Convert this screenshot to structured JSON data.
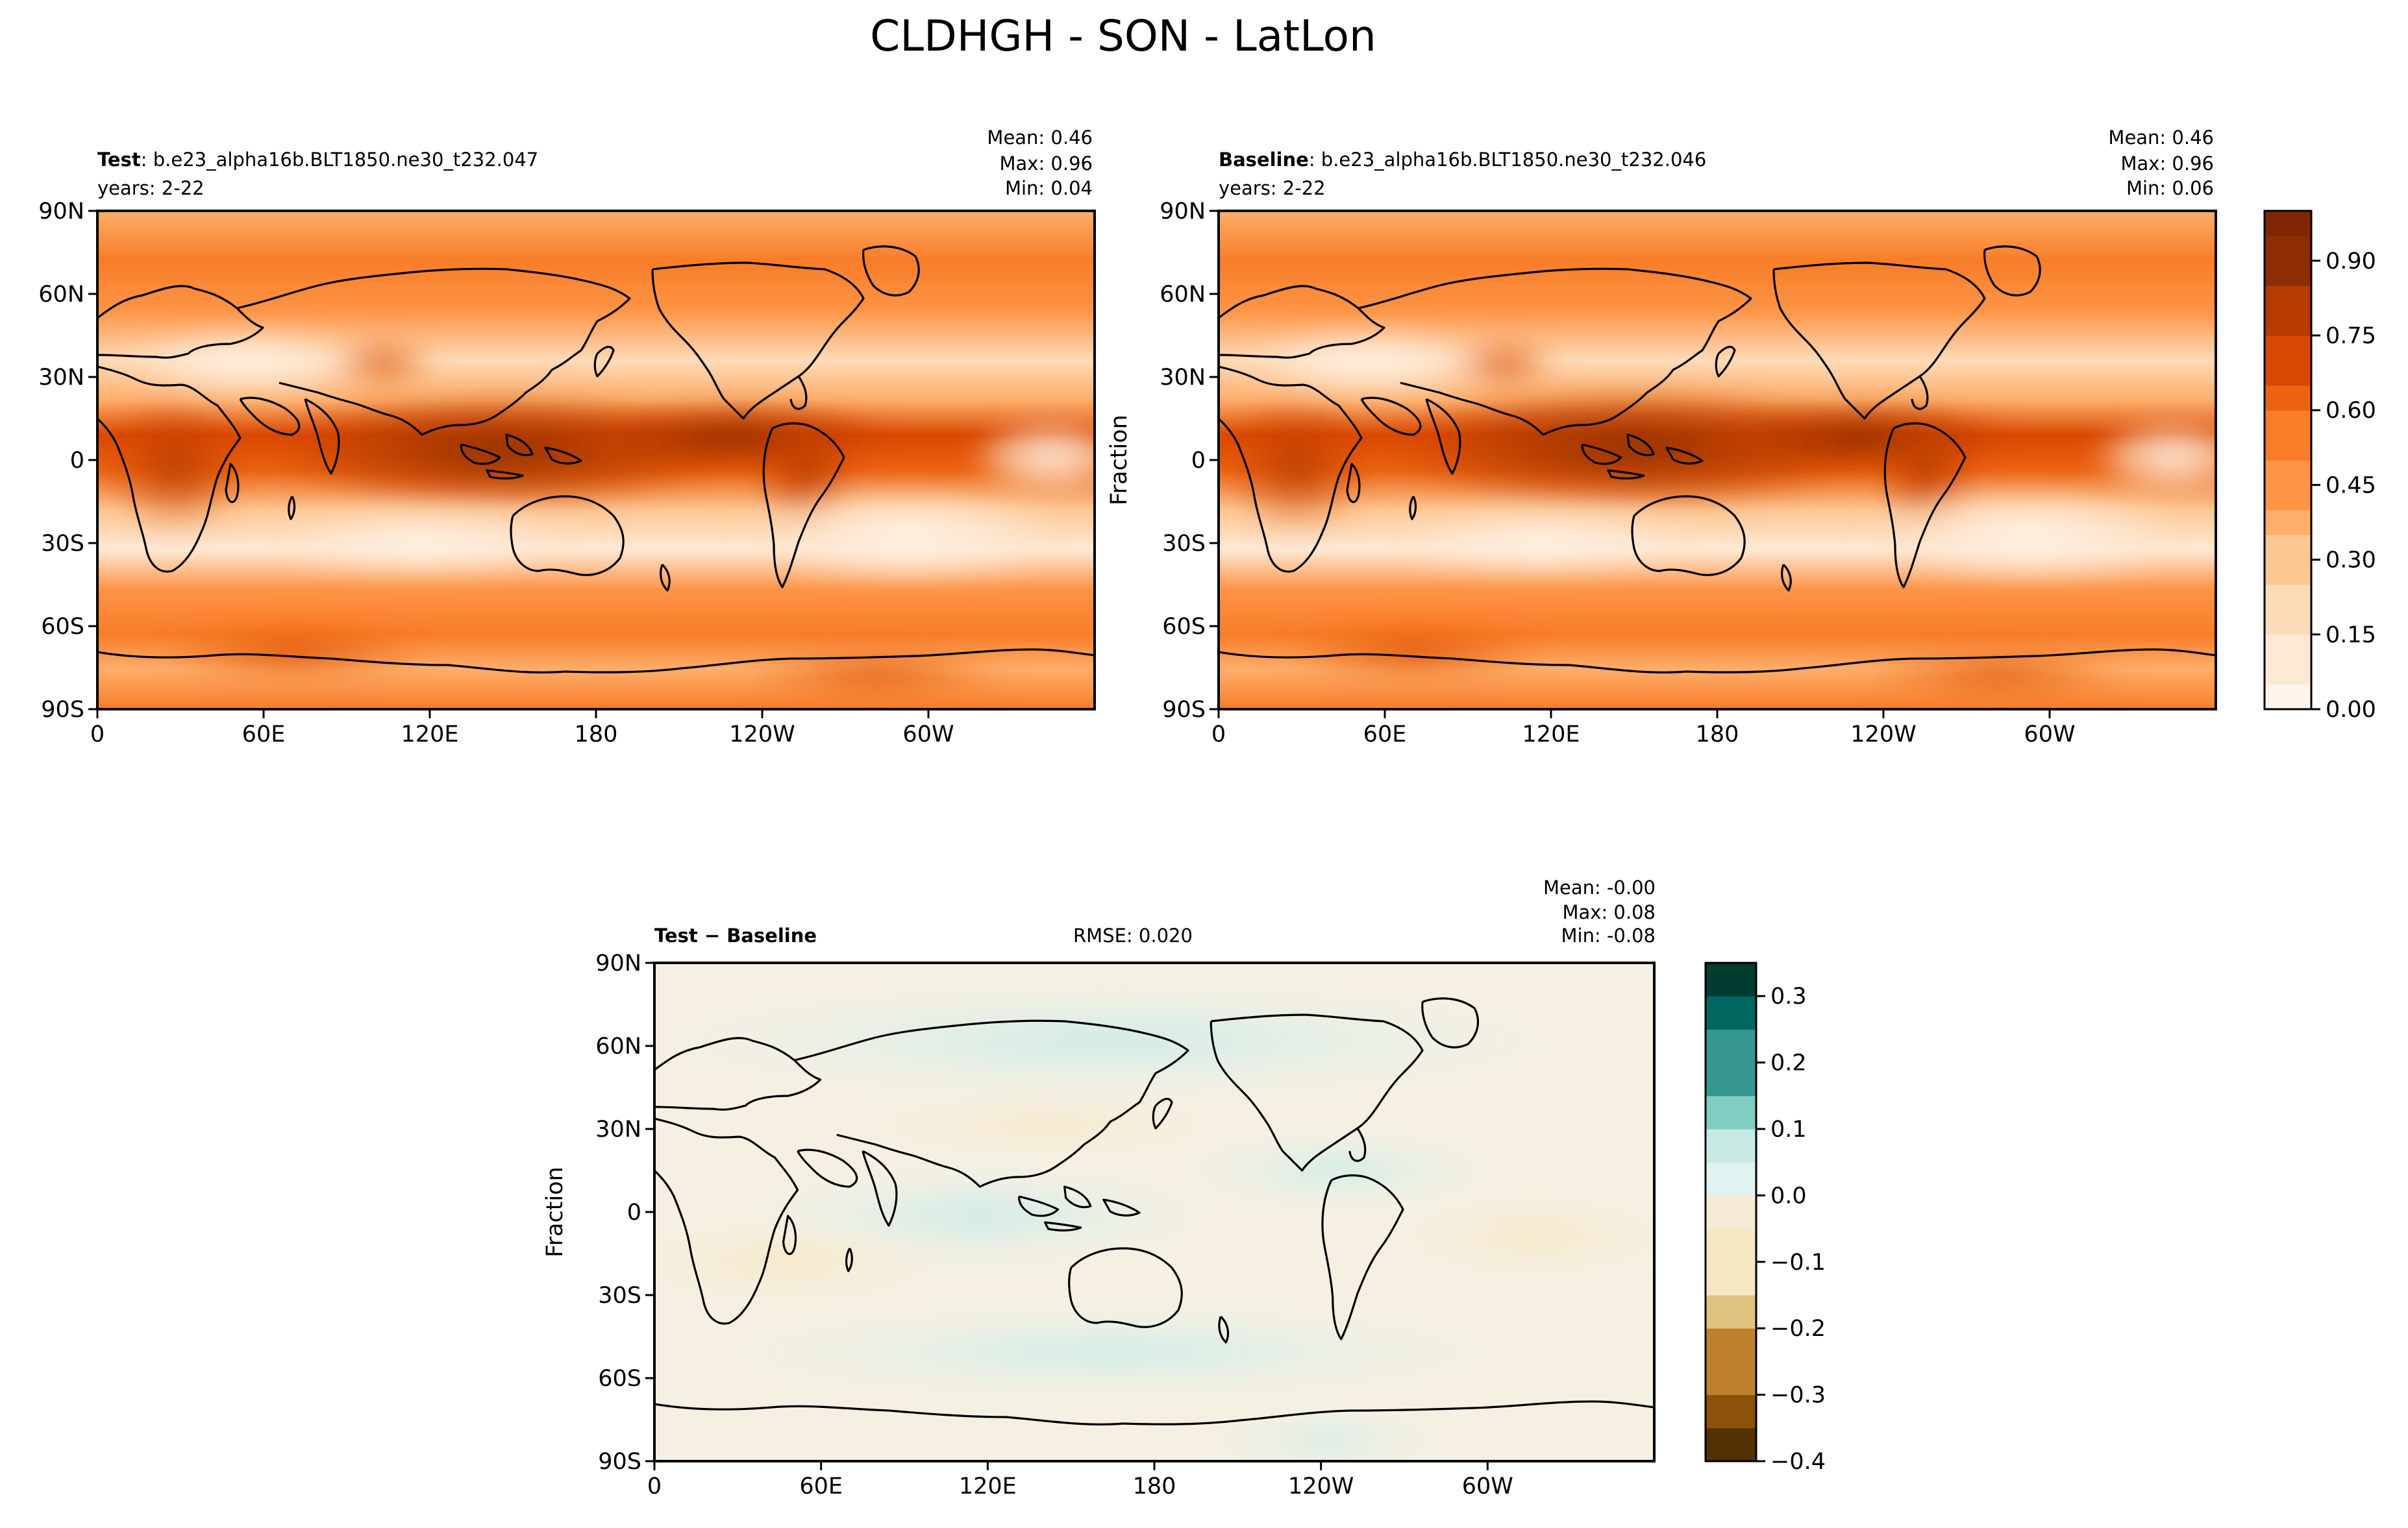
{
  "figure": {
    "title": "CLDHGH - SON - LatLon"
  },
  "colors": {
    "orange_scale": [
      "#fff5eb",
      "#fee9d5",
      "#fddbb8",
      "#fdc793",
      "#fdae6b",
      "#fd9446",
      "#f87d29",
      "#eb6311",
      "#d94801",
      "#b53b02",
      "#8c2d04",
      "#7f2704"
    ],
    "diff_scale": [
      "#543005",
      "#8c510a",
      "#bf812d",
      "#dfc27d",
      "#f6e8c3",
      "#f5f5f5",
      "#c7eae5",
      "#80cdc1",
      "#35978f",
      "#01665e",
      "#003c30"
    ],
    "coast": "#000000"
  },
  "chart_data": [
    {
      "type": "heatmap",
      "id": "test",
      "panel_label_bold": "Test",
      "panel_label_rest": ": b.e23_alpha16b.BLT1850.ne30_t232.047",
      "years_label": "years: 2-22",
      "stats": {
        "mean": "Mean:  0.46",
        "max": "Max:  0.96",
        "min": "Min:  0.04"
      },
      "ylabel": "",
      "x_ticks": [
        "0",
        "60E",
        "120E",
        "180",
        "120W",
        "60W"
      ],
      "y_ticks": [
        "90N",
        "60N",
        "30N",
        "0",
        "30S",
        "60S",
        "90S"
      ],
      "xlim": [
        0,
        360
      ],
      "ylim": [
        -90,
        90
      ],
      "value_range": [
        0.04,
        0.96
      ]
    },
    {
      "type": "heatmap",
      "id": "baseline",
      "panel_label_bold": "Baseline",
      "panel_label_rest": ": b.e23_alpha16b.BLT1850.ne30_t232.046",
      "years_label": "years: 2-22",
      "stats": {
        "mean": "Mean:  0.46",
        "max": "Max:  0.96",
        "min": "Min:  0.06"
      },
      "ylabel": "Fraction",
      "x_ticks": [
        "0",
        "60E",
        "120E",
        "180",
        "120W",
        "60W"
      ],
      "y_ticks": [
        "90N",
        "60N",
        "30N",
        "0",
        "30S",
        "60S",
        "90S"
      ],
      "xlim": [
        0,
        360
      ],
      "ylim": [
        -90,
        90
      ],
      "value_range": [
        0.06,
        0.96
      ],
      "colorbar": {
        "ticks": [
          "0.00",
          "0.15",
          "0.30",
          "0.45",
          "0.60",
          "0.75",
          "0.90"
        ],
        "range": [
          0,
          1.0
        ]
      }
    },
    {
      "type": "heatmap",
      "id": "diff",
      "panel_label": "Test − Baseline",
      "rmse_label": "RMSE: 0.020",
      "stats": {
        "mean": "Mean: -0.00",
        "max": "Max:  0.08",
        "min": "Min: -0.08"
      },
      "ylabel": "Fraction",
      "x_ticks": [
        "0",
        "60E",
        "120E",
        "180",
        "120W",
        "60W"
      ],
      "y_ticks": [
        "90N",
        "60N",
        "30N",
        "0",
        "30S",
        "60S",
        "90S"
      ],
      "xlim": [
        0,
        360
      ],
      "ylim": [
        -90,
        90
      ],
      "value_range": [
        -0.08,
        0.08
      ],
      "colorbar": {
        "ticks": [
          "0.3",
          "0.2",
          "0.1",
          "0.0",
          "−0.1",
          "−0.2",
          "−0.3",
          "−0.4"
        ],
        "range": [
          -0.4,
          0.35
        ]
      }
    }
  ]
}
